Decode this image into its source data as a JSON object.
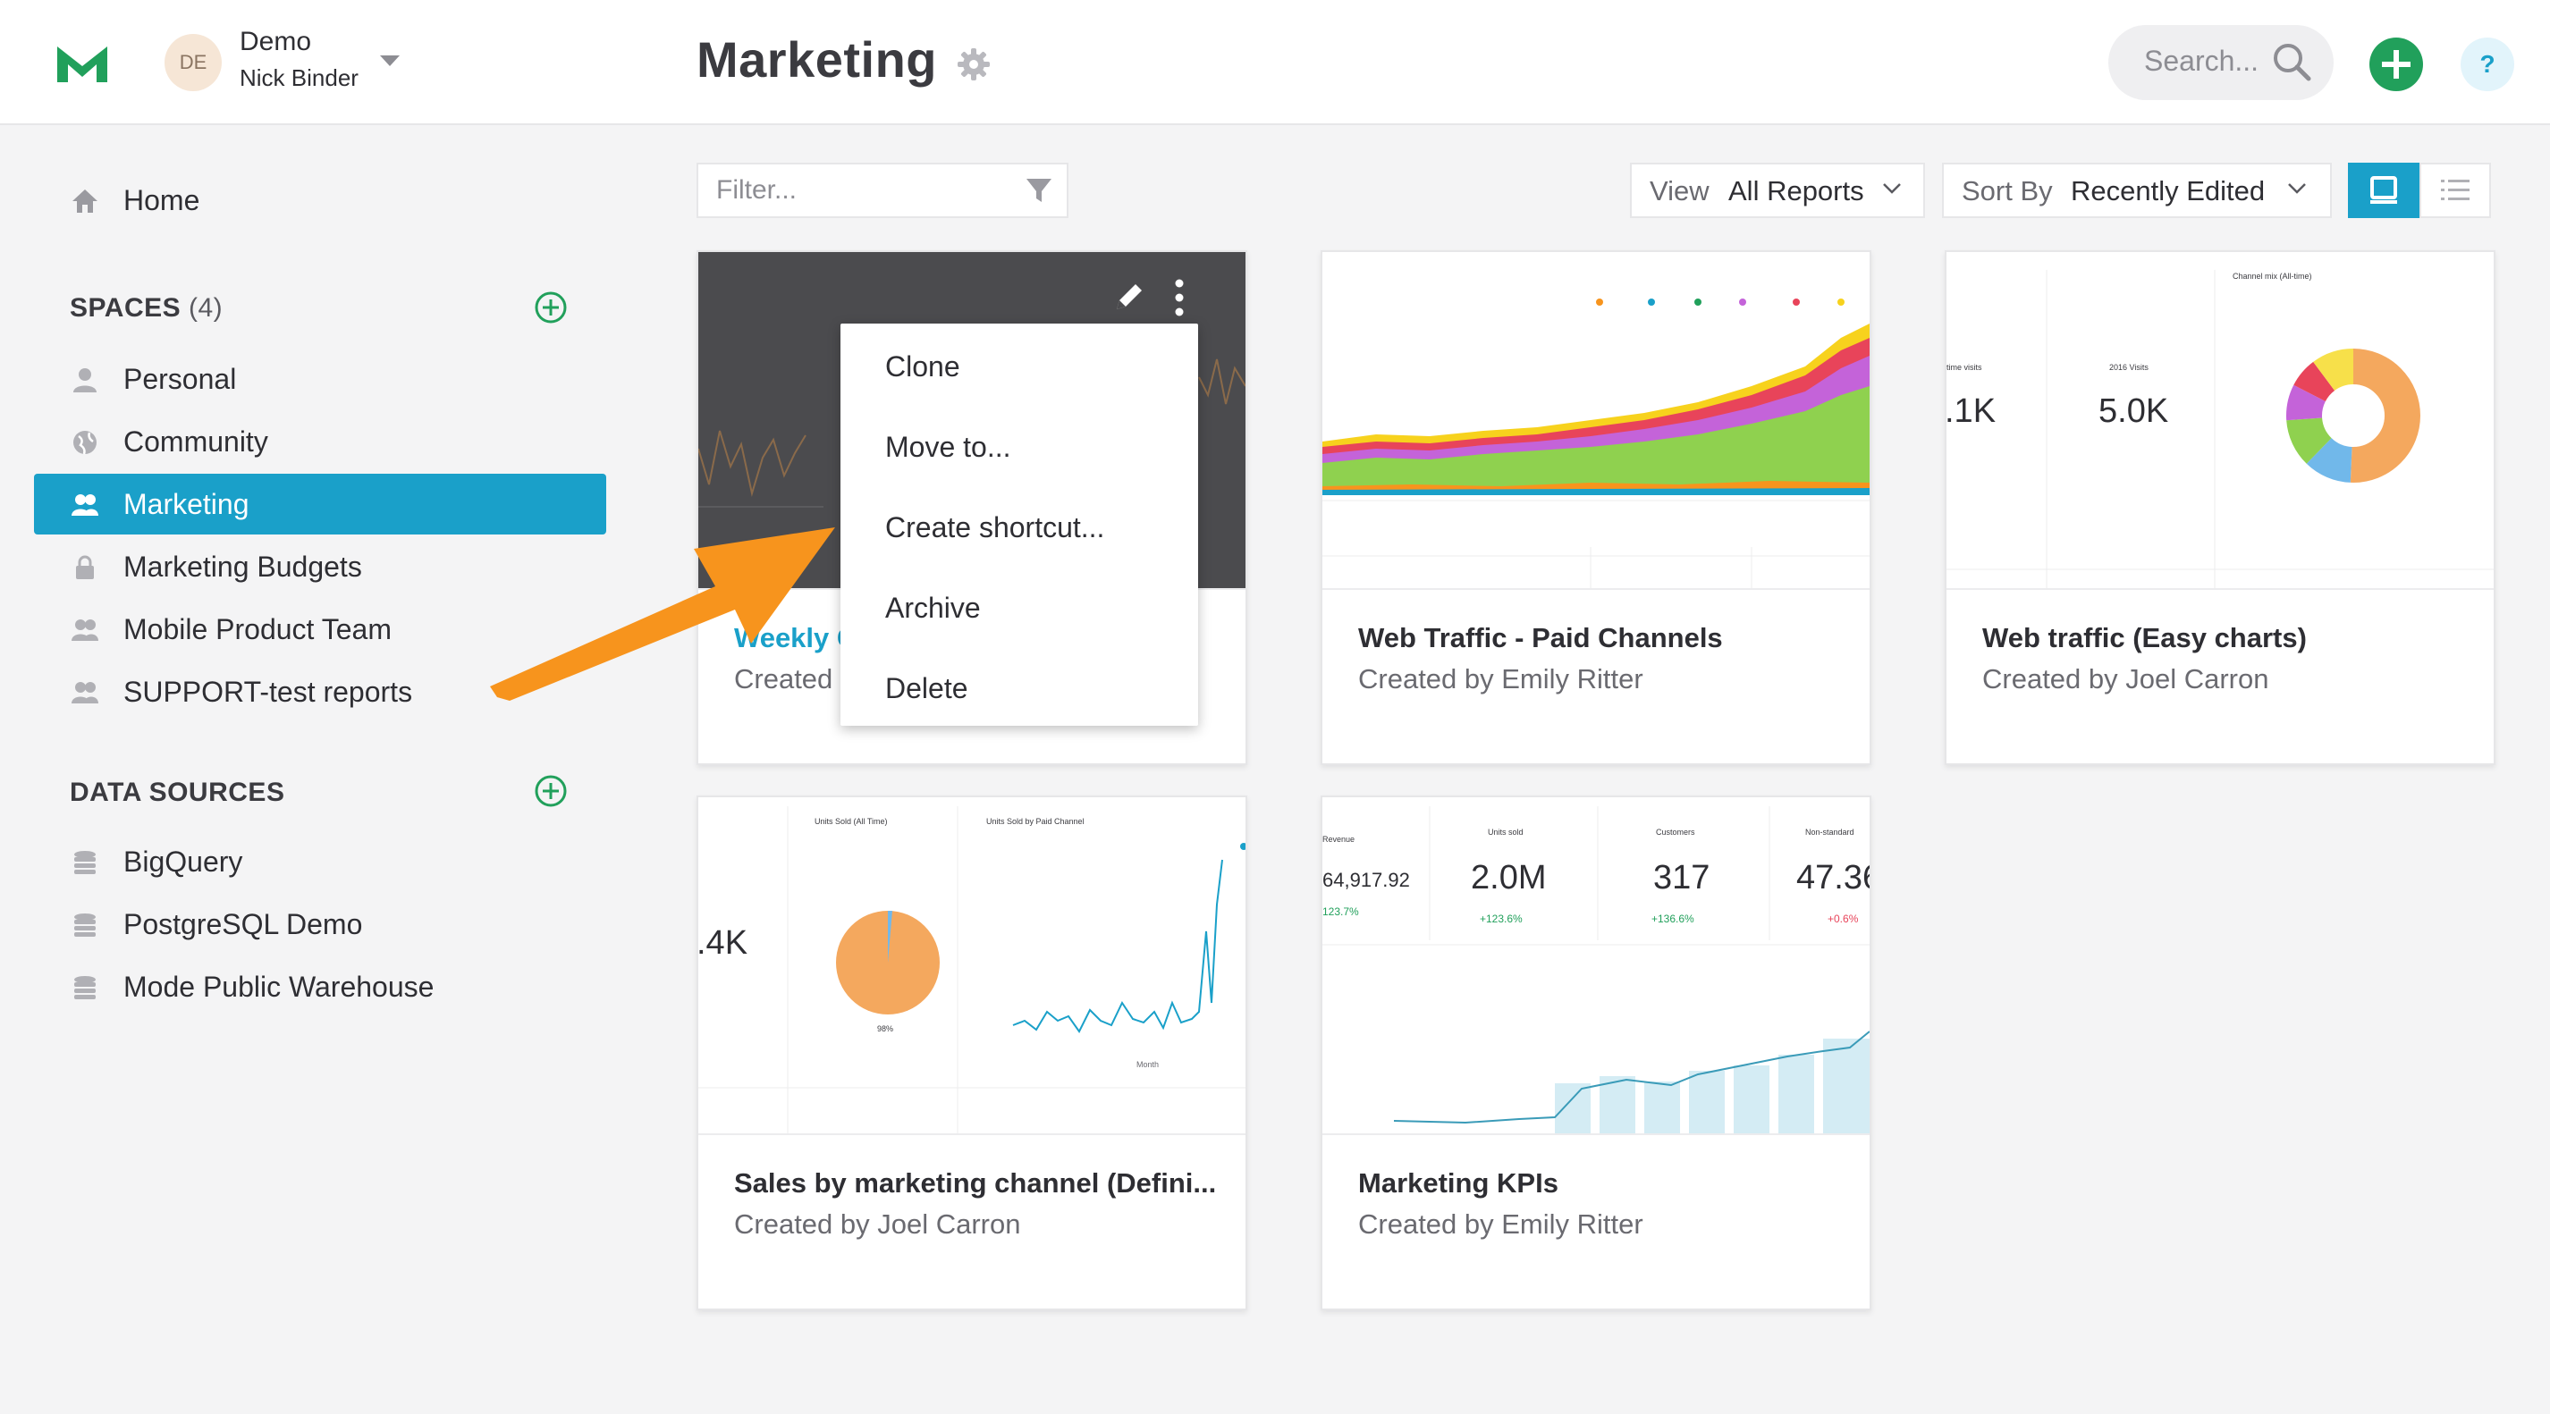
{
  "header": {
    "org_name": "Demo",
    "user_name": "Nick Binder",
    "avatar_initials": "DE",
    "page_title": "Marketing",
    "search_placeholder": "Search...",
    "help_label": "?"
  },
  "sidebar": {
    "home": "Home",
    "spaces_heading": "SPACES",
    "spaces_count": "(4)",
    "spaces": [
      {
        "label": "Personal",
        "icon": "person-icon"
      },
      {
        "label": "Community",
        "icon": "globe-icon"
      },
      {
        "label": "Marketing",
        "icon": "people-icon",
        "active": true
      },
      {
        "label": "Marketing Budgets",
        "icon": "lock-icon"
      },
      {
        "label": "Mobile Product Team",
        "icon": "people-icon"
      },
      {
        "label": "SUPPORT-test reports",
        "icon": "people-icon"
      }
    ],
    "data_sources_heading": "DATA SOURCES",
    "data_sources": [
      {
        "label": "BigQuery",
        "icon": "database-icon"
      },
      {
        "label": "PostgreSQL Demo",
        "icon": "database-icon"
      },
      {
        "label": "Mode Public Warehouse",
        "icon": "database-icon"
      }
    ]
  },
  "toolbar": {
    "filter_placeholder": "Filter...",
    "view_key": "View",
    "view_value": "All Reports",
    "sort_key": "Sort By",
    "sort_value": "Recently Edited"
  },
  "cards": [
    {
      "title": "Weekly C",
      "byline": "Created"
    },
    {
      "title": "Web Traffic - Paid Channels",
      "byline": "Created by Emily Ritter"
    },
    {
      "title": "Web traffic (Easy charts)",
      "byline": "Created by Joel Carron"
    },
    {
      "title": "Sales by marketing channel (Defini...",
      "byline": "Created by Joel Carron"
    },
    {
      "title": "Marketing KPIs",
      "byline": "Created by Emily Ritter"
    }
  ],
  "thumbs": {
    "card3": {
      "visits_label": "time visits",
      "visits_value": ".1K",
      "visits2016_label": "2016 Visits",
      "visits2016_value": "5.0K",
      "channel_mix_label": "Channel mix (All-time)"
    },
    "card4": {
      "units_label": "Units Sold (All Time)",
      "units_paid_label": "Units Sold by Paid Channel",
      "big_value": ".4K",
      "pct": "98%",
      "x_label": "Month"
    },
    "card5": {
      "k1_label": "Revenue",
      "k1_value": "64,917.92",
      "k1_delta": "123.7%",
      "k2_label": "Units sold",
      "k2_value": "2.0M",
      "k2_delta": "+123.6%",
      "k3_label": "Customers",
      "k3_value": "317",
      "k3_delta": "+136.6%",
      "k4_label": "Non-standard",
      "k4_value": "47.36",
      "k4_delta": "+0.6%"
    }
  },
  "context_menu": {
    "items": [
      "Clone",
      "Move to...",
      "Create shortcut...",
      "Archive",
      "Delete"
    ]
  },
  "colors": {
    "accent": "#1aa0c9",
    "brand_green": "#21a05b",
    "arrow": "#f7941d"
  }
}
